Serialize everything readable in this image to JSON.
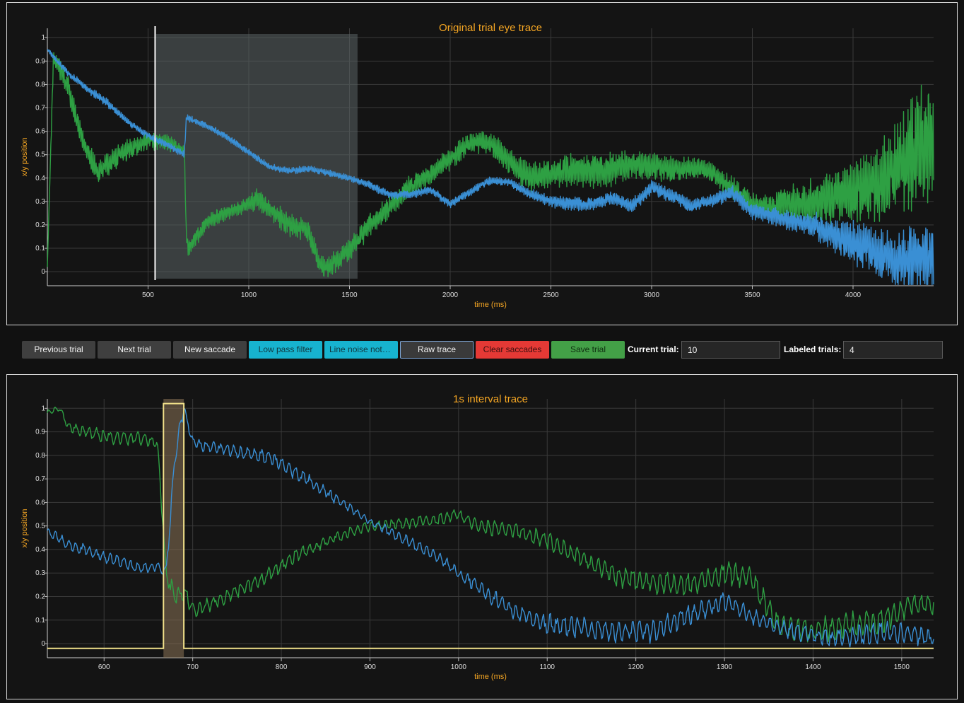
{
  "toolbar": {
    "previous_label": "Previous trial",
    "next_label": "Next trial",
    "new_saccade_label": "New saccade",
    "low_pass_label": "Low pass filter",
    "line_noise_label": "Line noise notch filter",
    "raw_trace_label": "Raw trace",
    "clear_saccades_label": "Clear saccades",
    "save_trial_label": "Save trial",
    "current_trial_label": "Current trial:",
    "current_trial_value": "10",
    "labeled_trials_label": "Labeled trials:",
    "labeled_trials_value": "4"
  },
  "colors": {
    "x_trace": "#3a8fd4",
    "y_trace": "#2ea043",
    "saccade": "#f0e08a",
    "accent": "#f5a623"
  },
  "chart_data": [
    {
      "type": "line",
      "title": "Original trial eye trace",
      "xlabel": "time (ms)",
      "ylabel": "x/y position",
      "xlim": [
        0,
        4400
      ],
      "ylim": [
        -0.06,
        1.04
      ],
      "xticks": [
        500,
        1000,
        1500,
        2000,
        2500,
        3000,
        3500,
        4000
      ],
      "yticks": [
        0,
        0.1,
        0.2,
        0.3,
        0.4,
        0.5,
        0.6,
        0.7,
        0.8,
        0.9,
        1
      ],
      "grid": true,
      "cursor_x": 535,
      "highlight_window": [
        540,
        1540
      ],
      "series": [
        {
          "key": "blue",
          "x": [
            0,
            30,
            100,
            200,
            300,
            400,
            500,
            600,
            680,
            690,
            800,
            900,
            1000,
            1100,
            1200,
            1300,
            1400,
            1500,
            1600,
            1700,
            1800,
            1900,
            2000,
            2100,
            2200,
            2300,
            2400,
            2500,
            2600,
            2700,
            2800,
            2900,
            3000,
            3100,
            3200,
            3300,
            3400,
            3500,
            3600,
            3700,
            3800,
            3900,
            4000,
            4100,
            4200,
            4300,
            4400
          ],
          "y": [
            0.95,
            0.92,
            0.85,
            0.78,
            0.72,
            0.64,
            0.58,
            0.54,
            0.5,
            0.66,
            0.62,
            0.57,
            0.51,
            0.45,
            0.43,
            0.44,
            0.42,
            0.4,
            0.37,
            0.33,
            0.33,
            0.35,
            0.29,
            0.34,
            0.39,
            0.38,
            0.33,
            0.3,
            0.29,
            0.29,
            0.32,
            0.28,
            0.36,
            0.32,
            0.28,
            0.3,
            0.34,
            0.26,
            0.24,
            0.22,
            0.2,
            0.16,
            0.12,
            0.08,
            0.04,
            0.05,
            0.07
          ],
          "noise": [
            0.005,
            0.012,
            0.012,
            0.015,
            0.015,
            0.012,
            0.012,
            0.012,
            0.012,
            0.012,
            0.012,
            0.012,
            0.012,
            0.012,
            0.012,
            0.012,
            0.012,
            0.012,
            0.015,
            0.015,
            0.015,
            0.015,
            0.015,
            0.015,
            0.015,
            0.015,
            0.02,
            0.02,
            0.025,
            0.025,
            0.025,
            0.025,
            0.025,
            0.025,
            0.025,
            0.025,
            0.025,
            0.03,
            0.03,
            0.04,
            0.05,
            0.06,
            0.08,
            0.09,
            0.1,
            0.12,
            0.12
          ]
        },
        {
          "key": "green",
          "x": [
            0,
            30,
            100,
            130,
            180,
            250,
            300,
            400,
            500,
            600,
            650,
            680,
            690,
            700,
            800,
            900,
            1000,
            1050,
            1100,
            1200,
            1300,
            1340,
            1360,
            1400,
            1500,
            1600,
            1700,
            1800,
            1900,
            2000,
            2100,
            2200,
            2300,
            2400,
            2500,
            2600,
            2700,
            2800,
            2900,
            3000,
            3100,
            3200,
            3300,
            3400,
            3500,
            3600,
            3700,
            3800,
            3900,
            4000,
            4100,
            4200,
            4300,
            4350,
            4400
          ],
          "y": [
            0.02,
            0.92,
            0.8,
            0.7,
            0.55,
            0.42,
            0.46,
            0.52,
            0.56,
            0.55,
            0.53,
            0.52,
            0.15,
            0.1,
            0.22,
            0.26,
            0.29,
            0.31,
            0.27,
            0.2,
            0.17,
            0.05,
            0.02,
            0.02,
            0.09,
            0.2,
            0.28,
            0.37,
            0.42,
            0.48,
            0.55,
            0.55,
            0.46,
            0.4,
            0.42,
            0.44,
            0.43,
            0.44,
            0.46,
            0.45,
            0.43,
            0.44,
            0.42,
            0.36,
            0.29,
            0.28,
            0.3,
            0.3,
            0.31,
            0.33,
            0.36,
            0.42,
            0.5,
            0.6,
            0.55
          ],
          "noise": [
            0.0,
            0.03,
            0.04,
            0.05,
            0.04,
            0.04,
            0.04,
            0.04,
            0.03,
            0.03,
            0.02,
            0.02,
            0.02,
            0.03,
            0.03,
            0.03,
            0.03,
            0.04,
            0.04,
            0.04,
            0.04,
            0.04,
            0.04,
            0.04,
            0.04,
            0.04,
            0.04,
            0.04,
            0.04,
            0.04,
            0.04,
            0.04,
            0.05,
            0.05,
            0.05,
            0.06,
            0.06,
            0.06,
            0.05,
            0.05,
            0.05,
            0.04,
            0.04,
            0.04,
            0.04,
            0.05,
            0.07,
            0.08,
            0.1,
            0.12,
            0.14,
            0.16,
            0.2,
            0.25,
            0.2
          ]
        }
      ]
    },
    {
      "type": "line",
      "title": "1s interval trace",
      "xlabel": "time (ms)",
      "ylabel": "x/y position",
      "xlim": [
        536,
        1536
      ],
      "ylim": [
        -0.06,
        1.04
      ],
      "xticks": [
        600,
        700,
        800,
        900,
        1000,
        1100,
        1200,
        1300,
        1400,
        1500
      ],
      "yticks": [
        0,
        0.1,
        0.2,
        0.3,
        0.4,
        0.5,
        0.6,
        0.7,
        0.8,
        0.9,
        1
      ],
      "grid": true,
      "saccade_windows": [
        [
          667,
          690
        ]
      ],
      "series": [
        {
          "key": "blue",
          "x": [
            536,
            560,
            600,
            640,
            660,
            670,
            680,
            690,
            700,
            740,
            780,
            820,
            860,
            900,
            940,
            980,
            1000,
            1030,
            1060,
            1100,
            1140,
            1180,
            1220,
            1260,
            1300,
            1340,
            1380,
            1420,
            1460,
            1500,
            1536
          ],
          "y": [
            0.48,
            0.42,
            0.37,
            0.32,
            0.33,
            0.3,
            0.8,
            1.0,
            0.85,
            0.82,
            0.8,
            0.72,
            0.62,
            0.52,
            0.44,
            0.36,
            0.3,
            0.22,
            0.14,
            0.08,
            0.07,
            0.05,
            0.05,
            0.12,
            0.18,
            0.1,
            0.05,
            0.02,
            0.04,
            0.05,
            0.02
          ],
          "noise": [
            0.015,
            0.02,
            0.025,
            0.02,
            0.02,
            0.02,
            0.04,
            0.02,
            0.02,
            0.025,
            0.025,
            0.025,
            0.02,
            0.015,
            0.02,
            0.02,
            0.02,
            0.03,
            0.03,
            0.04,
            0.04,
            0.04,
            0.04,
            0.04,
            0.03,
            0.03,
            0.03,
            0.03,
            0.04,
            0.04,
            0.03
          ]
        },
        {
          "key": "green",
          "x": [
            536,
            550,
            560,
            600,
            640,
            660,
            670,
            680,
            690,
            700,
            740,
            780,
            820,
            860,
            900,
            940,
            980,
            1000,
            1020,
            1060,
            1100,
            1140,
            1180,
            1220,
            1260,
            1300,
            1330,
            1360,
            1400,
            1440,
            1480,
            1520,
            1536
          ],
          "y": [
            0.98,
            1.0,
            0.92,
            0.88,
            0.87,
            0.86,
            0.3,
            0.2,
            0.22,
            0.14,
            0.2,
            0.28,
            0.38,
            0.45,
            0.5,
            0.51,
            0.53,
            0.55,
            0.5,
            0.48,
            0.44,
            0.36,
            0.28,
            0.26,
            0.25,
            0.3,
            0.28,
            0.08,
            0.05,
            0.08,
            0.1,
            0.18,
            0.16
          ],
          "noise": [
            0.01,
            0.01,
            0.02,
            0.025,
            0.025,
            0.02,
            0.03,
            0.03,
            0.03,
            0.03,
            0.025,
            0.025,
            0.025,
            0.02,
            0.02,
            0.02,
            0.02,
            0.02,
            0.025,
            0.03,
            0.03,
            0.03,
            0.035,
            0.04,
            0.04,
            0.04,
            0.04,
            0.04,
            0.045,
            0.045,
            0.045,
            0.04,
            0.03
          ]
        }
      ]
    }
  ]
}
